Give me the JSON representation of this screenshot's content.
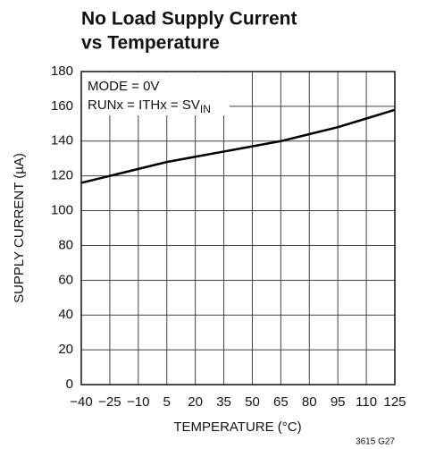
{
  "chart_data": {
    "type": "line",
    "title": [
      "No Load Supply Current",
      "vs Temperature"
    ],
    "xlabel": "TEMPERATURE (°C)",
    "ylabel": "SUPPLY CURRENT (µA)",
    "annotations": [
      {
        "text": "MODE = 0V"
      },
      {
        "text": "RUNx = ITHx = SV",
        "subscript": "IN"
      }
    ],
    "footnote": "3615 G27",
    "x": [
      -40,
      -25,
      -10,
      5,
      20,
      35,
      50,
      65,
      80,
      95,
      110,
      125
    ],
    "series": [
      {
        "color": "#000000",
        "values": [
          116,
          120,
          124,
          128,
          131,
          134,
          137,
          140,
          144,
          148,
          153,
          158
        ]
      }
    ],
    "xlim": [
      -40,
      125
    ],
    "xticks": [
      {
        "value": -40,
        "label": "−40"
      },
      {
        "value": -25,
        "label": "−25"
      },
      {
        "value": -10,
        "label": "−10"
      },
      5,
      20,
      35,
      50,
      65,
      80,
      95,
      110,
      125
    ],
    "ylim": [
      0,
      180
    ],
    "yticks": [
      0,
      20,
      40,
      60,
      80,
      100,
      120,
      140,
      160,
      180
    ],
    "grid": true
  }
}
